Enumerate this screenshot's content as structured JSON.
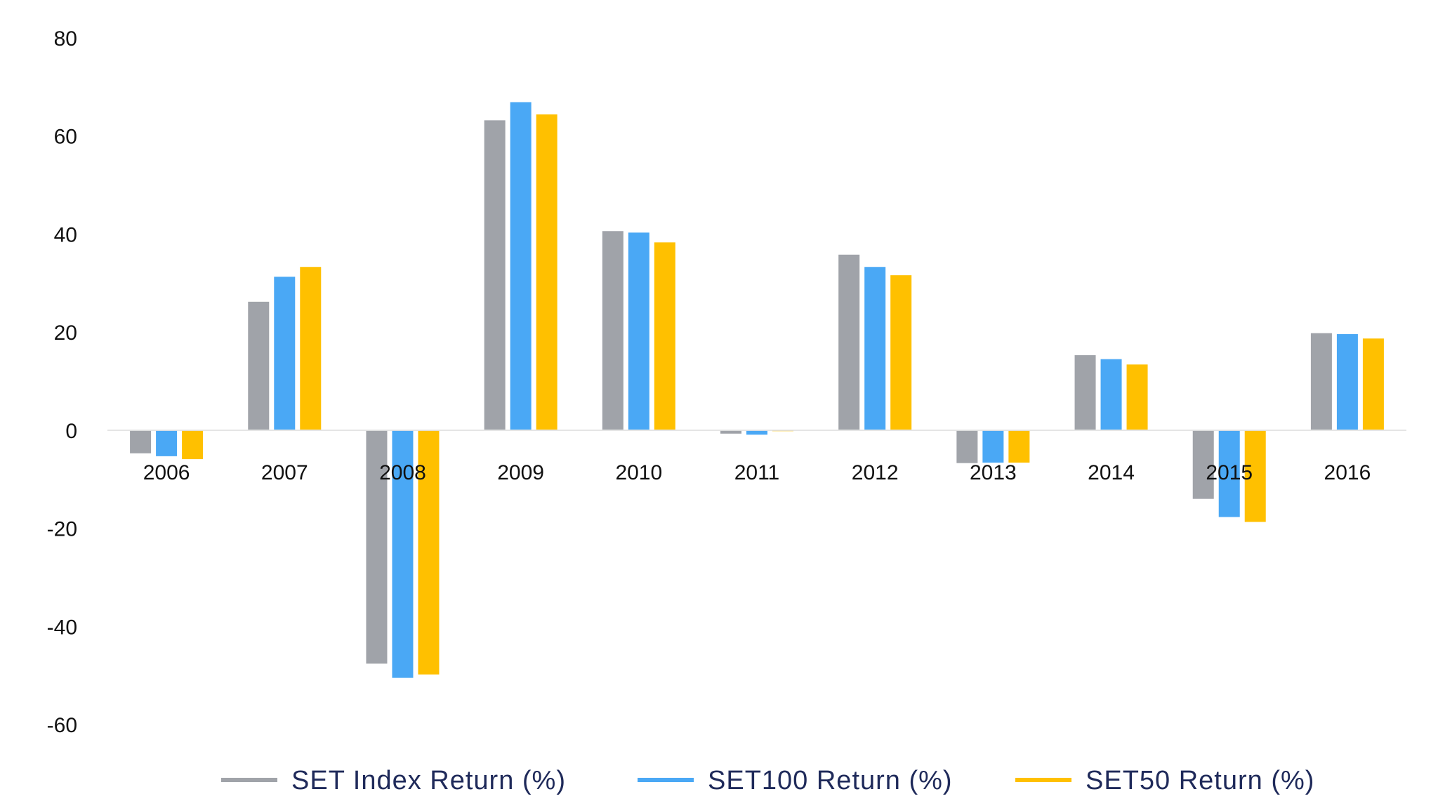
{
  "chart_data": {
    "type": "bar",
    "title": "",
    "xlabel": "",
    "ylabel": "",
    "ylim": [
      -60,
      80
    ],
    "yticks": [
      80,
      60,
      40,
      20,
      0,
      -20,
      -40,
      -60
    ],
    "grid": false,
    "legend_position": "bottom",
    "categories": [
      "2006",
      "2007",
      "2008",
      "2009",
      "2010",
      "2011",
      "2012",
      "2013",
      "2014",
      "2015",
      "2016"
    ],
    "series": [
      {
        "name": "SET Index Return (%)",
        "color": "#a0a3a9",
        "values": [
          -4.7,
          26.2,
          -47.6,
          63.2,
          40.6,
          -0.7,
          35.8,
          -6.7,
          15.3,
          -14.0,
          19.8
        ]
      },
      {
        "name": "SET100 Return (%)",
        "color": "#4aa8f5",
        "values": [
          -5.3,
          31.3,
          -50.5,
          66.9,
          40.3,
          -0.9,
          33.3,
          -6.6,
          14.5,
          -17.7,
          19.6
        ]
      },
      {
        "name": "SET50 Return (%)",
        "color": "#ffc000",
        "values": [
          -5.9,
          33.3,
          -49.8,
          64.4,
          38.3,
          -0.2,
          31.6,
          -6.6,
          13.4,
          -18.7,
          18.7
        ]
      }
    ]
  }
}
